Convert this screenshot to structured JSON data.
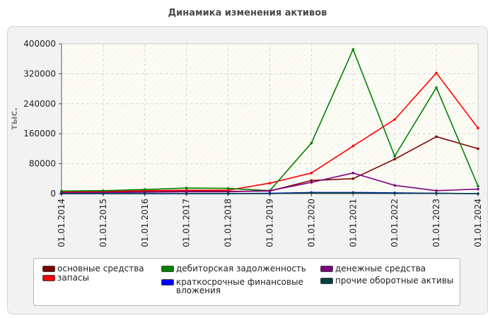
{
  "title": "Динамика изменения активов",
  "chart_data": {
    "type": "line",
    "ylabel": "тыс.",
    "xlabel": "",
    "ylim": [
      0,
      400000
    ],
    "y_ticks": [
      "400000",
      "320000",
      "240000",
      "160000",
      "80000",
      "0"
    ],
    "y_tick_values": [
      400000,
      320000,
      240000,
      160000,
      80000,
      0
    ],
    "categories": [
      "01.01.2014",
      "01.01.2015",
      "01.01.2016",
      "01.01.2017",
      "01.01.2018",
      "01.01.2019",
      "01.01.2020",
      "01.01.2021",
      "01.01.2022",
      "01.01.2023",
      "01.01.2024"
    ],
    "grid": true,
    "legend_position": "bottom",
    "series": [
      {
        "name": "основные средства",
        "color": "#800000",
        "values": [
          4000,
          5000,
          6000,
          6000,
          6000,
          7000,
          35000,
          40000,
          92000,
          152000,
          120000
        ]
      },
      {
        "name": "запасы",
        "color": "#ff0000",
        "values": [
          5000,
          6000,
          8000,
          9000,
          9000,
          28000,
          55000,
          127000,
          198000,
          322000,
          175000
        ]
      },
      {
        "name": "дебиторская задолженность",
        "color": "#008000",
        "values": [
          7000,
          8000,
          11000,
          15000,
          14000,
          8000,
          135000,
          385000,
          100000,
          283000,
          20000
        ]
      },
      {
        "name": "краткосрочные финансовые\nвложения",
        "color": "#0000ff",
        "values": [
          0,
          0,
          0,
          0,
          0,
          1000,
          3000,
          3000,
          2000,
          1000,
          0
        ]
      },
      {
        "name": "денежные средства",
        "color": "#800080",
        "values": [
          2000,
          3000,
          4000,
          5000,
          5000,
          8000,
          30000,
          55000,
          22000,
          8000,
          12000
        ]
      },
      {
        "name": "прочие оборотные активы",
        "color": "#004040",
        "values": [
          0,
          0,
          0,
          0,
          0,
          0,
          2000,
          2000,
          1000,
          1000,
          0
        ]
      }
    ]
  }
}
